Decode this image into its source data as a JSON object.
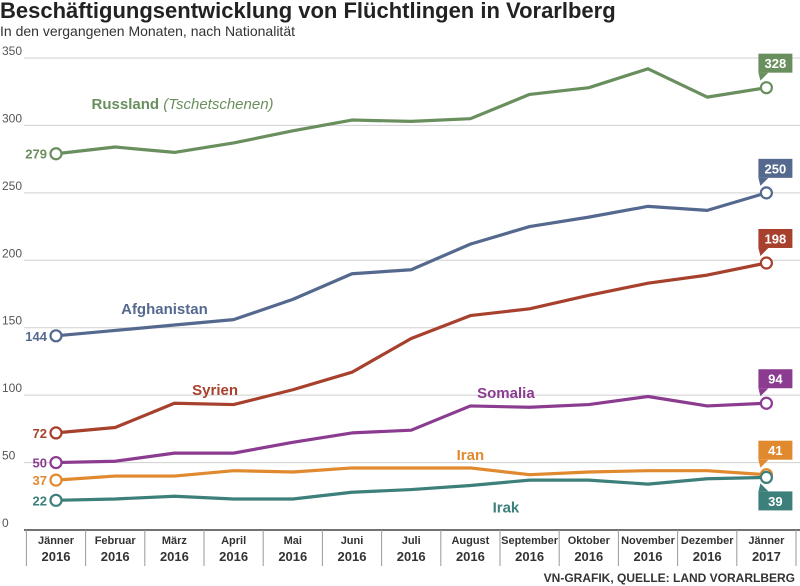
{
  "title": "Beschäftigungsentwicklung von Flüchtlingen in Vorarlberg",
  "subtitle": "In den vergangenen Monaten, nach Nationalität",
  "source": "VN-GRAFIK, QUELLE: LAND VORARLBERG",
  "chart_data": {
    "type": "line",
    "title": "Beschäftigungsentwicklung von Flüchtlingen in Vorarlberg",
    "subtitle": "In den vergangenen Monaten, nach Nationalität",
    "xlabel": "",
    "ylabel": "",
    "ylim": [
      0,
      350
    ],
    "yticks": [
      0,
      50,
      100,
      150,
      200,
      250,
      300,
      350
    ],
    "grid": true,
    "categories": [
      [
        "Jänner",
        "2016"
      ],
      [
        "Februar",
        "2016"
      ],
      [
        "März",
        "2016"
      ],
      [
        "April",
        "2016"
      ],
      [
        "Mai",
        "2016"
      ],
      [
        "Juni",
        "2016"
      ],
      [
        "Juli",
        "2016"
      ],
      [
        "August",
        "2016"
      ],
      [
        "September",
        "2016"
      ],
      [
        "Oktober",
        "2016"
      ],
      [
        "November",
        "2016"
      ],
      [
        "Dezember",
        "2016"
      ],
      [
        "Jänner",
        "2017"
      ]
    ],
    "series": [
      {
        "name": "Russland",
        "name_note": "(Tschetschenen)",
        "color": "#6a8f5e",
        "values": [
          279,
          284,
          280,
          287,
          296,
          304,
          303,
          305,
          323,
          328,
          342,
          321,
          328
        ]
      },
      {
        "name": "Afghanistan",
        "color": "#55698f",
        "values": [
          144,
          148,
          152,
          156,
          171,
          190,
          193,
          212,
          225,
          232,
          240,
          237,
          250
        ]
      },
      {
        "name": "Syrien",
        "color": "#a8402e",
        "values": [
          72,
          76,
          94,
          93,
          104,
          117,
          142,
          159,
          164,
          174,
          183,
          189,
          198
        ]
      },
      {
        "name": "Somalia",
        "color": "#8b3c91",
        "values": [
          50,
          51,
          57,
          57,
          65,
          72,
          74,
          92,
          91,
          93,
          99,
          92,
          94
        ]
      },
      {
        "name": "Iran",
        "color": "#e0892e",
        "values": [
          37,
          40,
          40,
          44,
          43,
          46,
          46,
          46,
          41,
          43,
          44,
          44,
          41
        ]
      },
      {
        "name": "Irak",
        "color": "#3d7f7a",
        "values": [
          22,
          23,
          25,
          23,
          23,
          28,
          30,
          33,
          37,
          37,
          34,
          38,
          39
        ]
      }
    ]
  }
}
